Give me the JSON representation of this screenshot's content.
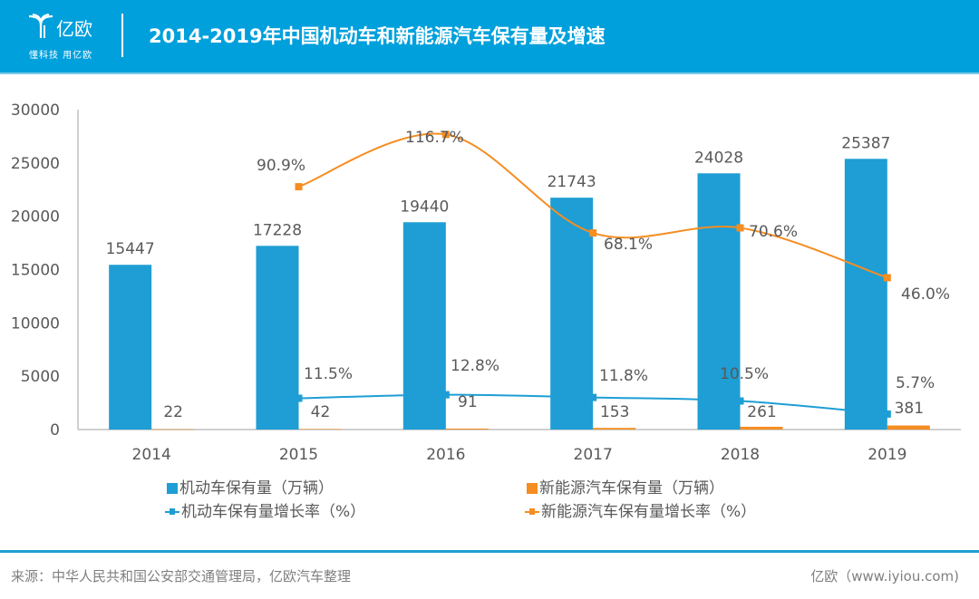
{
  "header": {
    "logo_name": "亿欧",
    "logo_slogan": "懂科技 用亿欧",
    "title": "2014-2019年中国机动车和新能源汽车保有量及增速"
  },
  "legend": {
    "items": [
      {
        "label": "机动车保有量（万辆）",
        "color": "#1e9ed4",
        "type": "bar"
      },
      {
        "label": "新能源汽车保有量（万辆）",
        "color": "#f58d22",
        "type": "bar"
      },
      {
        "label": "机动车保有量增长率（%）",
        "color": "#1e9ed4",
        "type": "line"
      },
      {
        "label": "新能源汽车保有量增长率（%）",
        "color": "#f58d22",
        "type": "line"
      }
    ]
  },
  "footer": {
    "source": "来源：中华人民共和国公安部交通管理局，亿欧汽车整理",
    "site": "亿欧（www.iyiou.com)"
  },
  "colors": {
    "header_bg": "#00a0dc",
    "blue": "#1e9ed4",
    "orange": "#f58d22",
    "axis": "#bfbfbf",
    "text": "#595959"
  },
  "chart_data": {
    "type": "bar",
    "title": "2014-2019年中国机动车和新能源汽车保有量及增速",
    "categories": [
      "2014",
      "2015",
      "2016",
      "2017",
      "2018",
      "2019"
    ],
    "xlabel": "",
    "ylabel": "",
    "ylim": [
      0,
      30000
    ],
    "yticks": [
      0,
      5000,
      10000,
      15000,
      20000,
      25000,
      30000
    ],
    "grid": false,
    "legend_position": "bottom",
    "series": [
      {
        "name": "机动车保有量（万辆）",
        "kind": "bar",
        "color": "#1e9ed4",
        "values": [
          15447,
          17228,
          19440,
          21743,
          24028,
          25387
        ],
        "labels": [
          "15447",
          "17228",
          "19440",
          "21743",
          "24028",
          "25387"
        ]
      },
      {
        "name": "新能源汽车保有量（万辆）",
        "kind": "bar",
        "color": "#f58d22",
        "values": [
          22,
          42,
          91,
          153,
          261,
          381
        ],
        "labels": [
          "22",
          "42",
          "91",
          "153",
          "261",
          "381"
        ]
      },
      {
        "name": "机动车保有量增长率（%）",
        "kind": "line",
        "axis": "secondary",
        "color": "#1e9ed4",
        "values": [
          null,
          11.5,
          12.8,
          11.8,
          10.5,
          5.7
        ],
        "labels": [
          null,
          "11.5%",
          "12.8%",
          "11.8%",
          "10.5%",
          "5.7%"
        ]
      },
      {
        "name": "新能源汽车保有量增长率（%）",
        "kind": "line",
        "axis": "secondary",
        "color": "#f58d22",
        "values": [
          null,
          90.9,
          116.7,
          68.1,
          70.6,
          46.0
        ],
        "labels": [
          null,
          "90.9%",
          "116.7%",
          "68.1%",
          "70.6%",
          "46.0%"
        ]
      }
    ],
    "secondary_ylim": [
      0,
      120
    ]
  }
}
